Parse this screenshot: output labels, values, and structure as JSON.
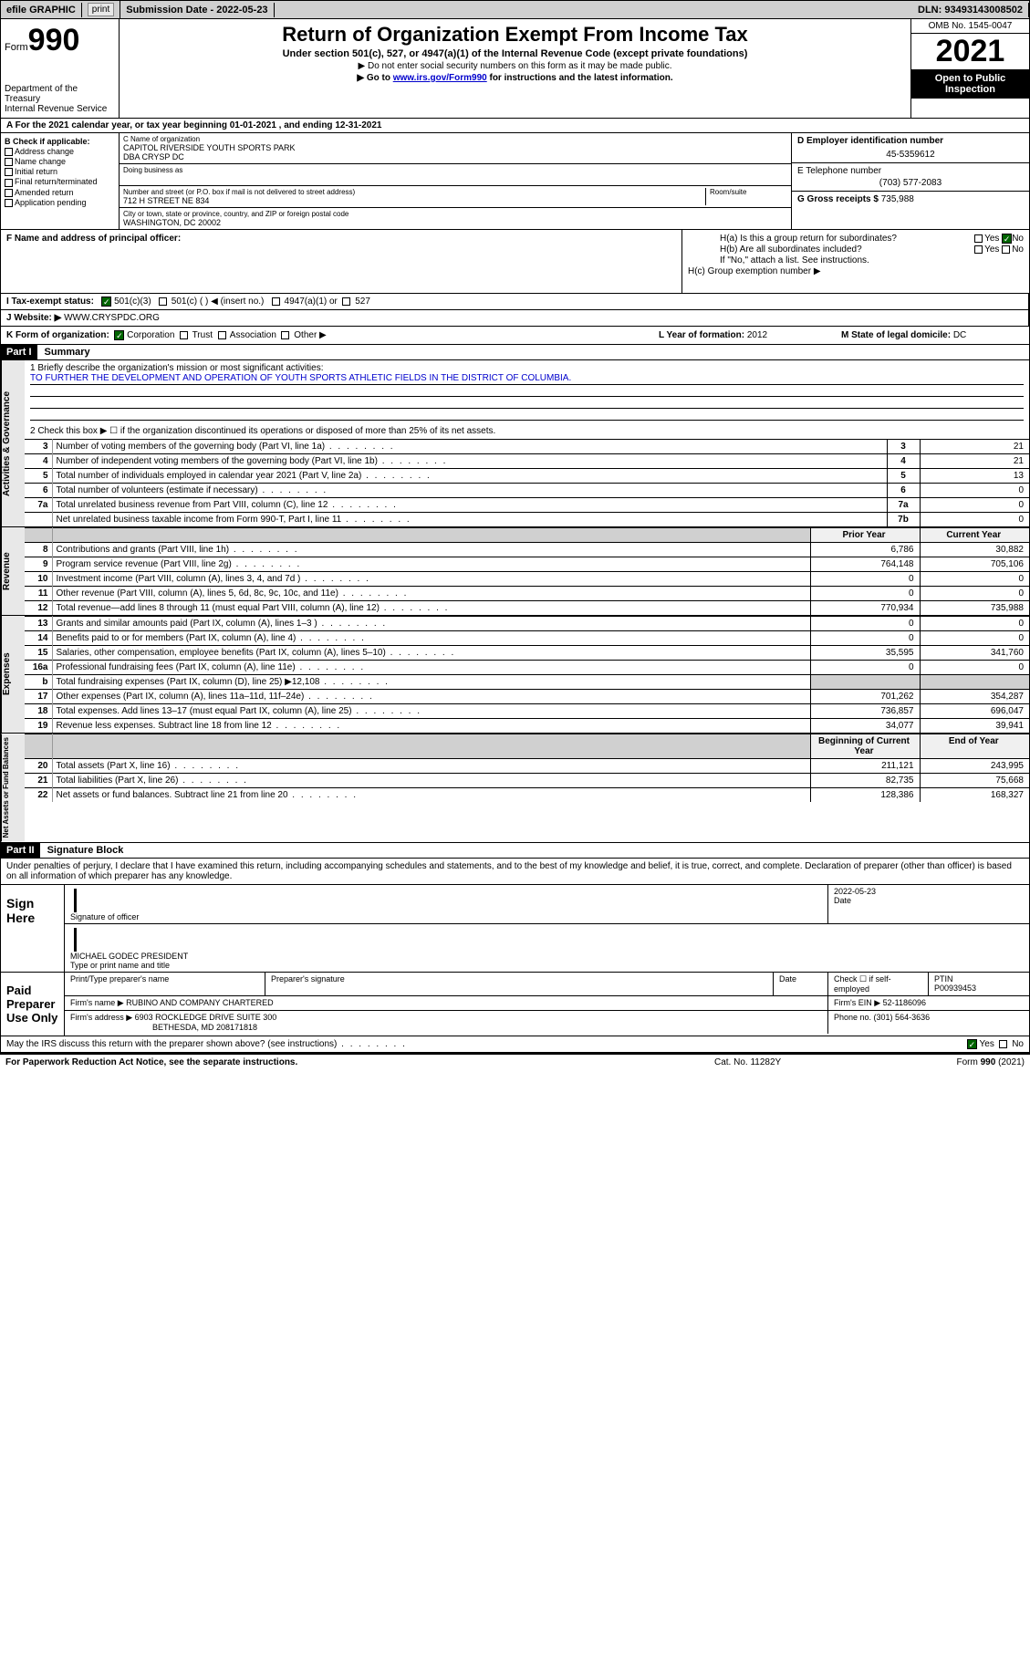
{
  "topbar": {
    "efile": "efile GRAPHIC",
    "print": "print",
    "subdate_lbl": "Submission Date - ",
    "subdate": "2022-05-23",
    "dln": "DLN: 93493143008502"
  },
  "header": {
    "form_word": "Form",
    "form_num": "990",
    "dept": "Department of the Treasury",
    "irs": "Internal Revenue Service",
    "title": "Return of Organization Exempt From Income Tax",
    "sub": "Under section 501(c), 527, or 4947(a)(1) of the Internal Revenue Code (except private foundations)",
    "note1": "▶ Do not enter social security numbers on this form as it may be made public.",
    "note2_pre": "▶ Go to ",
    "note2_link": "www.irs.gov/Form990",
    "note2_post": " for instructions and the latest information.",
    "omb": "OMB No. 1545-0047",
    "year": "2021",
    "inspect": "Open to Public Inspection"
  },
  "lineA": "A For the 2021 calendar year, or tax year beginning 01-01-2021   , and ending 12-31-2021",
  "boxB": {
    "lbl": "B Check if applicable:",
    "o1": "Address change",
    "o2": "Name change",
    "o3": "Initial return",
    "o4": "Final return/terminated",
    "o5": "Amended return",
    "o6": "Application pending"
  },
  "boxC": {
    "name_cap": "C Name of organization",
    "name": "CAPITOL RIVERSIDE YOUTH SPORTS PARK",
    "dba": "DBA CRYSP DC",
    "dba_cap": "Doing business as",
    "addr_cap": "Number and street (or P.O. box if mail is not delivered to street address)",
    "room_cap": "Room/suite",
    "addr": "712 H STREET NE 834",
    "city_cap": "City or town, state or province, country, and ZIP or foreign postal code",
    "city": "WASHINGTON, DC  20002"
  },
  "boxDE": {
    "d_lbl": "D Employer identification number",
    "d_val": "45-5359612",
    "e_lbl": "E Telephone number",
    "e_val": "(703) 577-2083",
    "g_lbl": "G Gross receipts $ ",
    "g_val": "735,988"
  },
  "boxF": {
    "lbl": "F  Name and address of principal officer:"
  },
  "boxH": {
    "ha": "H(a)  Is this a group return for subordinates?",
    "hb": "H(b)  Are all subordinates included?",
    "hb_note": "If \"No,\" attach a list. See instructions.",
    "hc": "H(c)  Group exemption number ▶",
    "yes": "Yes",
    "no": "No"
  },
  "rowI": {
    "lbl": "I   Tax-exempt status:",
    "o1": "501(c)(3)",
    "o2": "501(c) (   ) ◀ (insert no.)",
    "o3": "4947(a)(1) or",
    "o4": "527"
  },
  "rowJ": {
    "lbl": "J   Website: ▶ ",
    "val": "WWW.CRYSPDC.ORG"
  },
  "rowK": {
    "lbl": "K Form of organization:",
    "o1": "Corporation",
    "o2": "Trust",
    "o3": "Association",
    "o4": "Other ▶"
  },
  "rowL": {
    "lbl": "L Year of formation: ",
    "val": "2012"
  },
  "rowM": {
    "lbl": "M State of legal domicile: ",
    "val": "DC"
  },
  "part1": {
    "hdr": "Part I",
    "title": "Summary",
    "q1": "1   Briefly describe the organization's mission or most significant activities:",
    "mission": "TO FURTHER THE DEVELOPMENT AND OPERATION OF YOUTH SPORTS ATHLETIC FIELDS IN THE DISTRICT OF COLUMBIA.",
    "q2": "2   Check this box ▶ ☐  if the organization discontinued its operations or disposed of more than 25% of its net assets.",
    "rows_gov": [
      {
        "n": "3",
        "d": "Number of voting members of the governing body (Part VI, line 1a)",
        "b": "3",
        "v": "21"
      },
      {
        "n": "4",
        "d": "Number of independent voting members of the governing body (Part VI, line 1b)",
        "b": "4",
        "v": "21"
      },
      {
        "n": "5",
        "d": "Total number of individuals employed in calendar year 2021 (Part V, line 2a)",
        "b": "5",
        "v": "13"
      },
      {
        "n": "6",
        "d": "Total number of volunteers (estimate if necessary)",
        "b": "6",
        "v": "0"
      },
      {
        "n": "7a",
        "d": "Total unrelated business revenue from Part VIII, column (C), line 12",
        "b": "7a",
        "v": "0"
      },
      {
        "n": "",
        "d": "Net unrelated business taxable income from Form 990-T, Part I, line 11",
        "b": "7b",
        "v": "0"
      }
    ],
    "hdr_prior": "Prior Year",
    "hdr_curr": "Current Year",
    "rows_rev": [
      {
        "n": "8",
        "d": "Contributions and grants (Part VIII, line 1h)",
        "p": "6,786",
        "c": "30,882"
      },
      {
        "n": "9",
        "d": "Program service revenue (Part VIII, line 2g)",
        "p": "764,148",
        "c": "705,106"
      },
      {
        "n": "10",
        "d": "Investment income (Part VIII, column (A), lines 3, 4, and 7d )",
        "p": "0",
        "c": "0"
      },
      {
        "n": "11",
        "d": "Other revenue (Part VIII, column (A), lines 5, 6d, 8c, 9c, 10c, and 11e)",
        "p": "0",
        "c": "0"
      },
      {
        "n": "12",
        "d": "Total revenue—add lines 8 through 11 (must equal Part VIII, column (A), line 12)",
        "p": "770,934",
        "c": "735,988"
      }
    ],
    "rows_exp": [
      {
        "n": "13",
        "d": "Grants and similar amounts paid (Part IX, column (A), lines 1–3 )",
        "p": "0",
        "c": "0"
      },
      {
        "n": "14",
        "d": "Benefits paid to or for members (Part IX, column (A), line 4)",
        "p": "0",
        "c": "0"
      },
      {
        "n": "15",
        "d": "Salaries, other compensation, employee benefits (Part IX, column (A), lines 5–10)",
        "p": "35,595",
        "c": "341,760"
      },
      {
        "n": "16a",
        "d": "Professional fundraising fees (Part IX, column (A), line 11e)",
        "p": "0",
        "c": "0"
      },
      {
        "n": "b",
        "d": "Total fundraising expenses (Part IX, column (D), line 25) ▶12,108",
        "p": "",
        "c": "",
        "shade": true
      },
      {
        "n": "17",
        "d": "Other expenses (Part IX, column (A), lines 11a–11d, 11f–24e)",
        "p": "701,262",
        "c": "354,287"
      },
      {
        "n": "18",
        "d": "Total expenses. Add lines 13–17 (must equal Part IX, column (A), line 25)",
        "p": "736,857",
        "c": "696,047"
      },
      {
        "n": "19",
        "d": "Revenue less expenses. Subtract line 18 from line 12",
        "p": "34,077",
        "c": "39,941"
      }
    ],
    "hdr_beg": "Beginning of Current Year",
    "hdr_end": "End of Year",
    "rows_net": [
      {
        "n": "20",
        "d": "Total assets (Part X, line 16)",
        "p": "211,121",
        "c": "243,995"
      },
      {
        "n": "21",
        "d": "Total liabilities (Part X, line 26)",
        "p": "82,735",
        "c": "75,668"
      },
      {
        "n": "22",
        "d": "Net assets or fund balances. Subtract line 21 from line 20",
        "p": "128,386",
        "c": "168,327"
      }
    ],
    "vlab_gov": "Activities & Governance",
    "vlab_rev": "Revenue",
    "vlab_exp": "Expenses",
    "vlab_net": "Net Assets or Fund Balances"
  },
  "part2": {
    "hdr": "Part II",
    "title": "Signature Block",
    "declare": "Under penalties of perjury, I declare that I have examined this return, including accompanying schedules and statements, and to the best of my knowledge and belief, it is true, correct, and complete. Declaration of preparer (other than officer) is based on all information of which preparer has any knowledge.",
    "sign_here": "Sign Here",
    "sig_officer": "Signature of officer",
    "sig_date": "Date",
    "sig_date_val": "2022-05-23",
    "sig_name": "MICHAEL GODEC  PRESIDENT",
    "sig_name_cap": "Type or print name and title",
    "paid": "Paid Preparer Use Only",
    "prep_name_cap": "Print/Type preparer's name",
    "prep_sig_cap": "Preparer's signature",
    "prep_date_cap": "Date",
    "prep_check": "Check ☐ if self-employed",
    "ptin_lbl": "PTIN",
    "ptin": "P00939453",
    "firm_name_lbl": "Firm's name    ▶ ",
    "firm_name": "RUBINO AND COMPANY CHARTERED",
    "firm_ein_lbl": "Firm's EIN ▶ ",
    "firm_ein": "52-1186096",
    "firm_addr_lbl": "Firm's address ▶ ",
    "firm_addr1": "6903 ROCKLEDGE DRIVE SUITE 300",
    "firm_addr2": "BETHESDA, MD  208171818",
    "firm_phone_lbl": "Phone no. ",
    "firm_phone": "(301) 564-3636",
    "discuss": "May the IRS discuss this return with the preparer shown above? (see instructions)"
  },
  "footer": {
    "left": "For Paperwork Reduction Act Notice, see the separate instructions.",
    "mid": "Cat. No. 11282Y",
    "right": "Form 990 (2021)"
  }
}
